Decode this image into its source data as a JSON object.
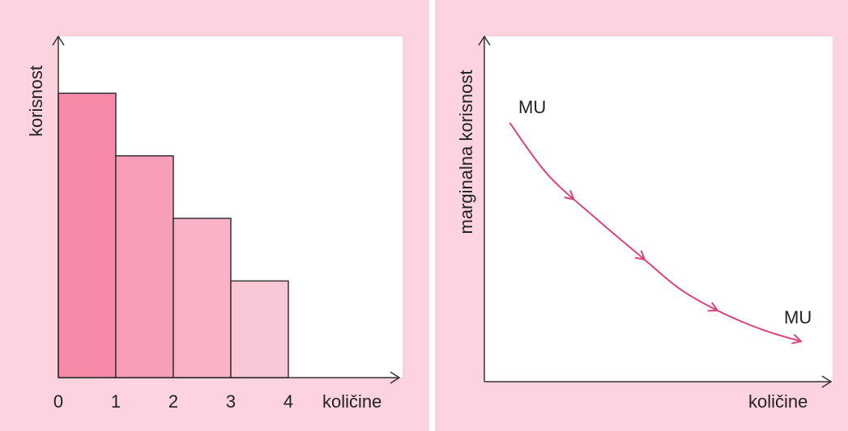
{
  "colors": {
    "panel_background": "#fdd3e0",
    "plot_background": "#ffffff",
    "bar_fills": [
      "#f68aa8",
      "#f79fb8",
      "#f9b2c6",
      "#fac7d6"
    ],
    "bar_edge": "#333333",
    "axis": "#333333",
    "curve": "#d9427a"
  },
  "chart_data": [
    {
      "type": "bar",
      "ylabel": "korisnost",
      "xlabel": "količine",
      "x_ticks": [
        "0",
        "1",
        "2",
        "3",
        "4"
      ],
      "bars": [
        {
          "x0": 0,
          "x1": 1,
          "value": 1.0
        },
        {
          "x0": 1,
          "x1": 2,
          "value": 0.78
        },
        {
          "x0": 2,
          "x1": 3,
          "value": 0.56
        },
        {
          "x0": 3,
          "x1": 4,
          "value": 0.34
        }
      ],
      "xlim": [
        0,
        6
      ],
      "ylim": [
        0,
        1.2
      ],
      "grid": false
    },
    {
      "type": "line",
      "ylabel": "marginalna korisnost",
      "xlabel": "količine",
      "series": [
        {
          "name": "MU",
          "x": [
            0.08,
            0.2,
            0.35,
            0.5,
            0.62,
            0.75,
            0.88,
            1.0
          ],
          "y": [
            0.9,
            0.72,
            0.57,
            0.43,
            0.32,
            0.24,
            0.18,
            0.14
          ]
        }
      ],
      "start_label": "MU",
      "end_label": "MU",
      "xlim": [
        0,
        1.1
      ],
      "ylim": [
        0,
        1.2
      ],
      "grid": false
    }
  ]
}
